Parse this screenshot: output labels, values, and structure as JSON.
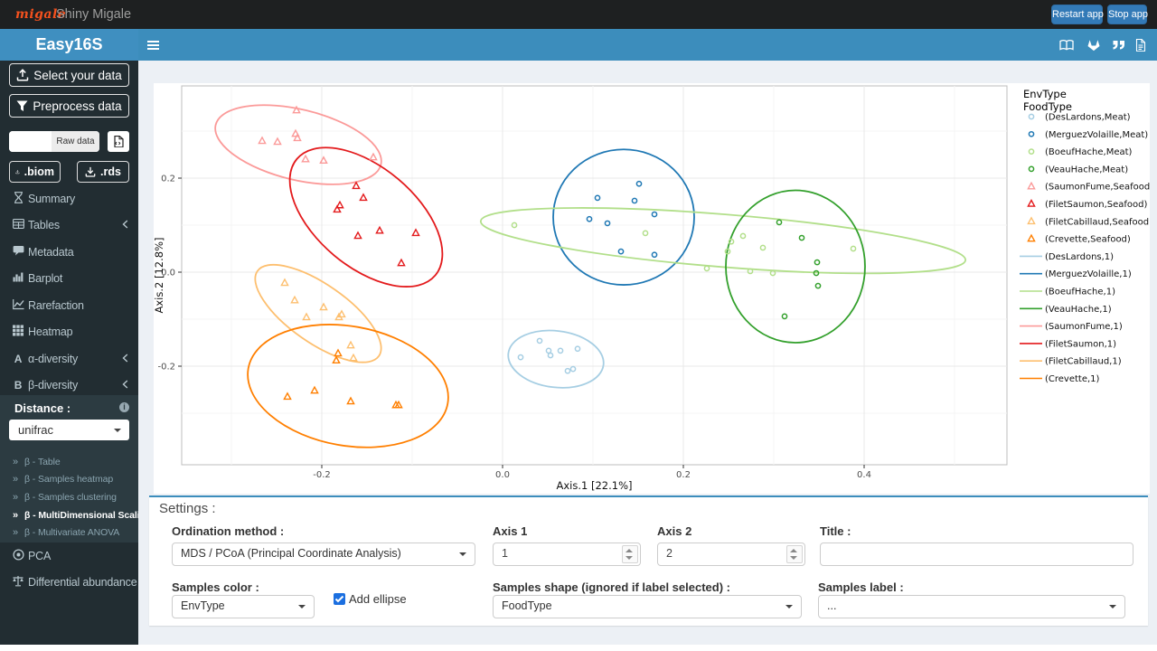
{
  "topbar": {
    "logo": "migale",
    "title": "Shiny Migale",
    "restart_label": "Restart app",
    "stop_label": "Stop app"
  },
  "header": {
    "app_title": "Easy16S"
  },
  "sidebar": {
    "select_data_label": "Select your data",
    "preprocess_label": "Preprocess data",
    "raw_data_label": "Raw data",
    "biom_label": ".biom",
    "rds_label": ".rds",
    "menu": [
      {
        "label": "Summary",
        "icon": "hourglass-icon",
        "chevron": false
      },
      {
        "label": "Tables",
        "icon": "table-icon",
        "chevron": true
      },
      {
        "label": "Metadata",
        "icon": "comment-icon",
        "chevron": false
      },
      {
        "label": "Barplot",
        "icon": "barchart-icon",
        "chevron": false
      },
      {
        "label": "Rarefaction",
        "icon": "linechart-icon",
        "chevron": false
      },
      {
        "label": "Heatmap",
        "icon": "heatmap-icon",
        "chevron": false
      },
      {
        "label": "α-diversity",
        "icon": "alpha-icon",
        "chevron": true
      },
      {
        "label": "β-diversity",
        "icon": "beta-icon",
        "chevron": true
      }
    ],
    "beta_submenu": {
      "distance_label": "Distance :",
      "distance_value": "unifrac",
      "items": [
        "β - Table",
        "β - Samples heatmap",
        "β - Samples clustering",
        "β - MultiDimensional Scaling",
        "β - Multivariate ANOVA"
      ],
      "active_index": 3
    },
    "bottom_menu": [
      {
        "label": "PCA",
        "icon": "dot-circle-icon"
      },
      {
        "label": "Differential abundance",
        "icon": "balance-icon"
      }
    ]
  },
  "settings": {
    "title": "Settings :",
    "ordination_label": "Ordination method :",
    "ordination_value": "MDS / PCoA (Principal Coordinate Analysis)",
    "axis1_label": "Axis 1",
    "axis1_value": "1",
    "axis2_label": "Axis 2",
    "axis2_value": "2",
    "title_label": "Title :",
    "title_value": "",
    "samples_color_label": "Samples color :",
    "samples_color_value": "EnvType",
    "add_ellipse_label": "Add ellipse",
    "add_ellipse_checked": true,
    "samples_shape_label": "Samples shape (ignored if label selected) :",
    "samples_shape_value": "FoodType",
    "samples_label_label": "Samples label :",
    "samples_label_value": "..."
  },
  "chart_data": {
    "type": "scatter",
    "xlabel": "Axis.1   [22.1%]",
    "ylabel": "Axis.2   [12.8%]",
    "xlim": [
      -0.355,
      0.557
    ],
    "ylim": [
      -0.41,
      0.396
    ],
    "xticks": [
      -0.2,
      0.0,
      0.2,
      0.4
    ],
    "yticks": [
      0.2,
      0.0,
      -0.2
    ],
    "xticks_minor": [
      -0.3,
      -0.1,
      0.1,
      0.3,
      0.5
    ],
    "yticks_minor": [
      0.3,
      0.1,
      -0.1,
      -0.3
    ],
    "grid": true,
    "legend_position": "right",
    "legend_titles": [
      "EnvType",
      "FoodType"
    ],
    "series": [
      {
        "name": "DesLardons",
        "food_type": "Meat",
        "color": "#a6cee3",
        "shape": "circle",
        "point_label": "(DesLardons,Meat)",
        "line_label": "(DesLardons,1)",
        "points": [
          [
            0.041,
            -0.146
          ],
          [
            0.02,
            -0.181
          ],
          [
            0.051,
            -0.167
          ],
          [
            0.053,
            -0.177
          ],
          [
            0.064,
            -0.167
          ],
          [
            0.083,
            -0.163
          ],
          [
            0.072,
            -0.21
          ],
          [
            0.078,
            -0.206
          ]
        ],
        "ellipse": {
          "cx": 0.059,
          "cy": -0.185,
          "rx": 0.053,
          "ry": 0.06,
          "angle": 7
        }
      },
      {
        "name": "MerguezVolaille",
        "food_type": "Meat",
        "color": "#1f78b4",
        "shape": "circle",
        "point_label": "(MerguezVolaille,Meat)",
        "line_label": "(MerguezVolaille,1)",
        "points": [
          [
            0.151,
            0.188
          ],
          [
            0.105,
            0.158
          ],
          [
            0.146,
            0.152
          ],
          [
            0.168,
            0.123
          ],
          [
            0.096,
            0.113
          ],
          [
            0.116,
            0.104
          ],
          [
            0.131,
            0.044
          ],
          [
            0.168,
            0.037
          ]
        ],
        "ellipse": {
          "cx": 0.134,
          "cy": 0.117,
          "rx": 0.078,
          "ry": 0.144,
          "angle": 0
        }
      },
      {
        "name": "BoeufHache",
        "food_type": "Meat",
        "color": "#b2df8a",
        "shape": "circle",
        "point_label": "(BoeufHache,Meat)",
        "line_label": "(BoeufHache,1)",
        "points": [
          [
            0.013,
            0.1
          ],
          [
            0.158,
            0.083
          ],
          [
            0.226,
            0.008
          ],
          [
            0.266,
            0.077
          ],
          [
            0.253,
            0.065
          ],
          [
            0.288,
            0.052
          ],
          [
            0.249,
            0.044
          ],
          [
            0.274,
            0.002
          ],
          [
            0.299,
            -0.002
          ],
          [
            0.388,
            0.05
          ]
        ],
        "ellipse": {
          "cx": 0.244,
          "cy": 0.067,
          "rx": 0.269,
          "ry": 0.056,
          "angle": 4.6
        }
      },
      {
        "name": "VeauHache",
        "food_type": "Meat",
        "color": "#33a02c",
        "shape": "circle",
        "point_label": "(VeauHache,Meat)",
        "line_label": "(VeauHache,1)",
        "points": [
          [
            0.306,
            0.106
          ],
          [
            0.331,
            0.073
          ],
          [
            0.348,
            0.021
          ],
          [
            0.347,
            -0.002
          ],
          [
            0.349,
            -0.029
          ],
          [
            0.312,
            -0.094
          ]
        ],
        "ellipse": {
          "cx": 0.324,
          "cy": 0.012,
          "rx": 0.077,
          "ry": 0.162,
          "angle": 0
        }
      },
      {
        "name": "SaumonFume",
        "food_type": "Seafood",
        "color": "#fb9a99",
        "shape": "triangle",
        "point_label": "(SaumonFume,Seafood)",
        "line_label": "(SaumonFume,1)",
        "points": [
          [
            -0.228,
            0.344
          ],
          [
            -0.266,
            0.279
          ],
          [
            -0.249,
            0.277
          ],
          [
            -0.229,
            0.294
          ],
          [
            -0.227,
            0.285
          ],
          [
            -0.218,
            0.24
          ],
          [
            -0.198,
            0.237
          ],
          [
            -0.143,
            0.244
          ]
        ],
        "ellipse": {
          "cx": -0.226,
          "cy": 0.271,
          "rx": 0.094,
          "ry": 0.075,
          "angle": 13.5
        }
      },
      {
        "name": "FiletSaumon",
        "food_type": "Seafood",
        "color": "#e31a1c",
        "shape": "triangle",
        "point_label": "(FiletSaumon,Seafood)",
        "line_label": "(FiletSaumon,1)",
        "points": [
          [
            -0.162,
            0.183
          ],
          [
            -0.154,
            0.158
          ],
          [
            -0.18,
            0.142
          ],
          [
            -0.183,
            0.133
          ],
          [
            -0.16,
            0.077
          ],
          [
            -0.136,
            0.088
          ],
          [
            -0.096,
            0.083
          ],
          [
            -0.112,
            0.019
          ]
        ],
        "ellipse": {
          "cx": -0.151,
          "cy": 0.117,
          "rx": 0.1,
          "ry": 0.106,
          "angle": 40
        }
      },
      {
        "name": "FiletCabillaud",
        "food_type": "Seafood",
        "color": "#fdbf6f",
        "shape": "triangle",
        "point_label": "(FiletCabillaud,Seafood)",
        "line_label": "(FiletCabillaud,1)",
        "points": [
          [
            -0.241,
            -0.023
          ],
          [
            -0.23,
            -0.06
          ],
          [
            -0.198,
            -0.075
          ],
          [
            -0.217,
            -0.096
          ],
          [
            -0.178,
            -0.09
          ],
          [
            -0.181,
            -0.096
          ],
          [
            -0.168,
            -0.156
          ],
          [
            -0.165,
            -0.183
          ]
        ],
        "ellipse": {
          "cx": -0.204,
          "cy": -0.088,
          "rx": 0.082,
          "ry": 0.062,
          "angle": 35
        }
      },
      {
        "name": "Crevette",
        "food_type": "Seafood",
        "color": "#ff7f00",
        "shape": "triangle",
        "point_label": "(Crevette,Seafood)",
        "line_label": "(Crevette,1)",
        "points": [
          [
            -0.182,
            -0.173
          ],
          [
            -0.184,
            -0.188
          ],
          [
            -0.238,
            -0.265
          ],
          [
            -0.208,
            -0.252
          ],
          [
            -0.168,
            -0.275
          ],
          [
            -0.118,
            -0.283
          ],
          [
            -0.115,
            -0.283
          ]
        ],
        "ellipse": {
          "cx": -0.171,
          "cy": -0.242,
          "rx": 0.112,
          "ry": 0.127,
          "angle": 10
        }
      }
    ]
  }
}
